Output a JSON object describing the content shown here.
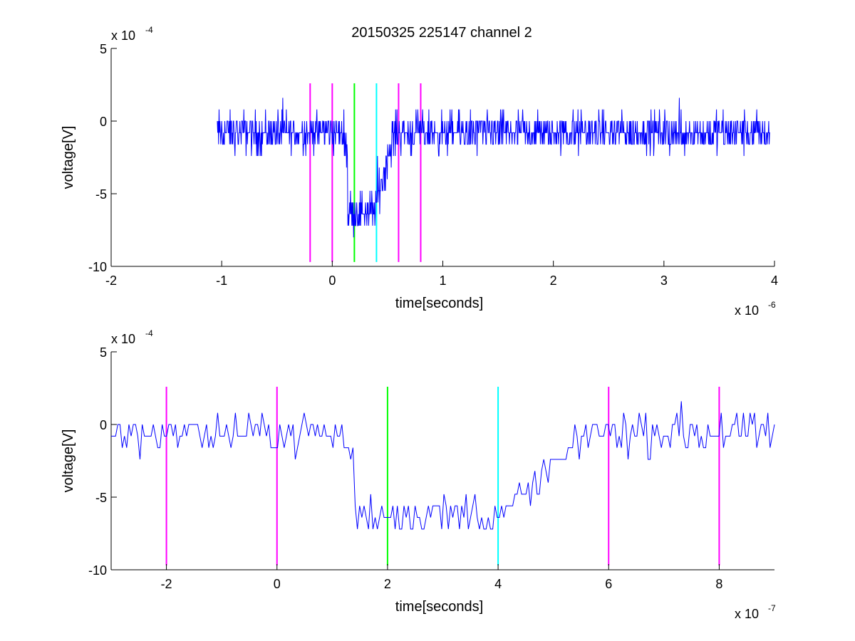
{
  "figure": {
    "title": "20150325 225147 channel 2"
  },
  "chart_data": [
    {
      "type": "line",
      "title": "20150325 225147 channel 2",
      "xlabel": "time[seconds]",
      "ylabel": "voltage[V]",
      "x_exponent": "x 10",
      "x_exponent_power": "-6",
      "y_exponent": "x 10",
      "y_exponent_power": "-4",
      "xlim": [
        -2,
        4
      ],
      "ylim": [
        -10,
        5
      ],
      "xticks": [
        -2,
        -1,
        0,
        1,
        2,
        3,
        4
      ],
      "xtick_labels": [
        "-2",
        "-1",
        "0",
        "1",
        "2",
        "3",
        "4"
      ],
      "yticks": [
        5,
        0,
        -5,
        -10
      ],
      "ytick_labels": [
        "5",
        "0",
        "-5",
        "-10"
      ],
      "grid": false,
      "series": [
        {
          "color": "#0000ff",
          "x_range": [
            -1.04,
            3.96
          ],
          "samples": 1250,
          "baseline": -0.8,
          "noise_levels": [
            1.6,
            0.8,
            0,
            -0.8,
            -1.6,
            -2.4,
            -3.2
          ],
          "pulse": {
            "dip_start": 0.14,
            "dip_end": 0.38,
            "recovery_end": 0.56,
            "dip_level": -6.2,
            "min": -8.8
          }
        }
      ],
      "markers": [
        {
          "x": -0.2,
          "color": "#ff00ff"
        },
        {
          "x": 0.0,
          "color": "#ff00ff"
        },
        {
          "x": 0.2,
          "color": "#00ff00"
        },
        {
          "x": 0.4,
          "color": "#00ffff"
        },
        {
          "x": 0.6,
          "color": "#ff00ff"
        },
        {
          "x": 0.8,
          "color": "#ff00ff"
        }
      ],
      "marker_range": [
        -9.7,
        2.6
      ]
    },
    {
      "type": "line",
      "title": "",
      "xlabel": "time[seconds]",
      "ylabel": "voltage[V]",
      "x_exponent": "x 10",
      "x_exponent_power": "-7",
      "y_exponent": "x 10",
      "y_exponent_power": "-4",
      "xlim": [
        -3,
        9
      ],
      "ylim": [
        -10,
        5
      ],
      "xticks": [
        -2,
        0,
        2,
        4,
        6,
        8
      ],
      "xtick_labels": [
        "-2",
        "0",
        "2",
        "4",
        "6",
        "8"
      ],
      "yticks": [
        5,
        0,
        -5,
        -10
      ],
      "ytick_labels": [
        "5",
        "0",
        "-5",
        "-10"
      ],
      "grid": false,
      "series": [
        {
          "color": "#0000ff",
          "x_range": [
            -3,
            9
          ],
          "samples": 300,
          "baseline": -0.6,
          "noise_levels": [
            2.4,
            1.6,
            0.8,
            0,
            -0.8,
            -1.6,
            -2.4
          ],
          "pulse": {
            "dip_start": 1.4,
            "dip_end": 4.1,
            "recovery_end": 5.6,
            "dip_level": -6.2,
            "min": -8.8
          }
        }
      ],
      "markers": [
        {
          "x": -2,
          "color": "#ff00ff"
        },
        {
          "x": 0,
          "color": "#ff00ff"
        },
        {
          "x": 2,
          "color": "#00ff00"
        },
        {
          "x": 4,
          "color": "#00ffff"
        },
        {
          "x": 6,
          "color": "#ff00ff"
        },
        {
          "x": 8,
          "color": "#ff00ff"
        }
      ],
      "marker_range": [
        -9.7,
        2.6
      ]
    }
  ]
}
